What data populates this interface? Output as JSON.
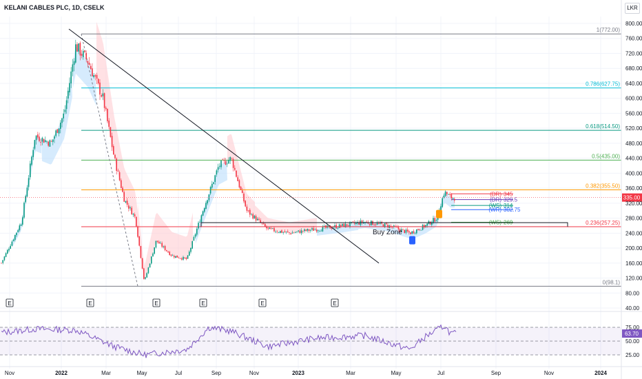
{
  "header": {
    "title": "KELANI CABLES PLC, 1D, CSELK",
    "currency": "LKR"
  },
  "price_badge": {
    "value": "335.00",
    "color": "#f23645"
  },
  "rsi_badge": {
    "value": "63.70",
    "color": "#7e57c2"
  },
  "chart_data": {
    "type": "candlestick",
    "y_ticks": [
      "800.00",
      "760.00",
      "720.00",
      "680.00",
      "640.00",
      "600.00",
      "560.00",
      "520.00",
      "480.00",
      "440.00",
      "400.00",
      "360.00",
      "320.00",
      "280.00",
      "240.00",
      "200.00",
      "160.00",
      "120.00",
      "80.00",
      "40.00"
    ],
    "rsi_ticks": [
      "75.00",
      "50.00",
      "25.00"
    ],
    "x_ticks": [
      "Nov",
      "2022",
      "Mar",
      "May",
      "Jul",
      "Sep",
      "Nov",
      "2023",
      "Mar",
      "May",
      "Jul",
      "Sep",
      "Nov",
      "2024"
    ],
    "fib_levels": [
      {
        "label": "1(772.00)",
        "value": 772.0,
        "color": "#787b86"
      },
      {
        "label": "0.786(627.75)",
        "value": 627.75,
        "color": "#00bcd4"
      },
      {
        "label": "0.618(514.50)",
        "value": 514.5,
        "color": "#089981"
      },
      {
        "label": "0.5(435.00)",
        "value": 435.0,
        "color": "#4caf50"
      },
      {
        "label": "0.382(355.50)",
        "value": 355.5,
        "color": "#ff9800"
      },
      {
        "label": "0.236(257.25)",
        "value": 257.25,
        "color": "#f23645"
      },
      {
        "label": "0(98.1)",
        "value": 98.1,
        "color": "#787b86"
      }
    ],
    "pivot_levels": [
      {
        "label": "(DR)",
        "value_text": "345",
        "value": 345,
        "color": "#f23645"
      },
      {
        "label": "(DR)",
        "value_text": "329.5",
        "value": 329.5,
        "color": "#673ab7"
      },
      {
        "label": "(WS)",
        "value_text": "314",
        "value": 314,
        "color": "#089981"
      },
      {
        "label": "(WR)",
        "value_text": "302.75",
        "value": 302.75,
        "color": "#2962ff"
      },
      {
        "label": "(WS)",
        "value_text": "269",
        "value": 269,
        "color": "#4caf50"
      }
    ],
    "annotations": {
      "buy_zone": "Buy Zone",
      "earnings_marker": "E"
    },
    "price_key_points": [
      {
        "date": "2021-10-20",
        "close": 150
      },
      {
        "date": "2021-11-15",
        "close": 270
      },
      {
        "date": "2021-12-01",
        "close": 500
      },
      {
        "date": "2021-12-20",
        "close": 480
      },
      {
        "date": "2022-01-05",
        "close": 560
      },
      {
        "date": "2022-01-20",
        "close": 740
      },
      {
        "date": "2022-02-05",
        "close": 700
      },
      {
        "date": "2022-02-25",
        "close": 600
      },
      {
        "date": "2022-03-15",
        "close": 440
      },
      {
        "date": "2022-04-01",
        "close": 330
      },
      {
        "date": "2022-04-20",
        "close": 280
      },
      {
        "date": "2022-05-05",
        "close": 110
      },
      {
        "date": "2022-05-25",
        "close": 220
      },
      {
        "date": "2022-06-20",
        "close": 180
      },
      {
        "date": "2022-07-15",
        "close": 170
      },
      {
        "date": "2022-08-10",
        "close": 300
      },
      {
        "date": "2022-09-05",
        "close": 420
      },
      {
        "date": "2022-09-25",
        "close": 440
      },
      {
        "date": "2022-10-20",
        "close": 300
      },
      {
        "date": "2022-11-20",
        "close": 250
      },
      {
        "date": "2022-12-20",
        "close": 240
      },
      {
        "date": "2023-01-20",
        "close": 250
      },
      {
        "date": "2023-02-20",
        "close": 260
      },
      {
        "date": "2023-03-20",
        "close": 270
      },
      {
        "date": "2023-04-20",
        "close": 260
      },
      {
        "date": "2023-05-20",
        "close": 240
      },
      {
        "date": "2023-06-10",
        "close": 260
      },
      {
        "date": "2023-06-25",
        "close": 280
      },
      {
        "date": "2023-07-05",
        "close": 350
      },
      {
        "date": "2023-07-12",
        "close": 335
      }
    ],
    "rsi_key_points": [
      {
        "date": "2021-10-20",
        "value": 65
      },
      {
        "date": "2021-12-01",
        "value": 72
      },
      {
        "date": "2022-01-20",
        "value": 70
      },
      {
        "date": "2022-03-15",
        "value": 40
      },
      {
        "date": "2022-05-05",
        "value": 25
      },
      {
        "date": "2022-07-15",
        "value": 35
      },
      {
        "date": "2022-08-20",
        "value": 75
      },
      {
        "date": "2022-09-25",
        "value": 68
      },
      {
        "date": "2022-11-20",
        "value": 40
      },
      {
        "date": "2023-01-20",
        "value": 55
      },
      {
        "date": "2023-03-20",
        "value": 60
      },
      {
        "date": "2023-05-20",
        "value": 35
      },
      {
        "date": "2023-06-10",
        "value": 58
      },
      {
        "date": "2023-07-05",
        "value": 78
      },
      {
        "date": "2023-07-12",
        "value": 63.7
      }
    ]
  }
}
